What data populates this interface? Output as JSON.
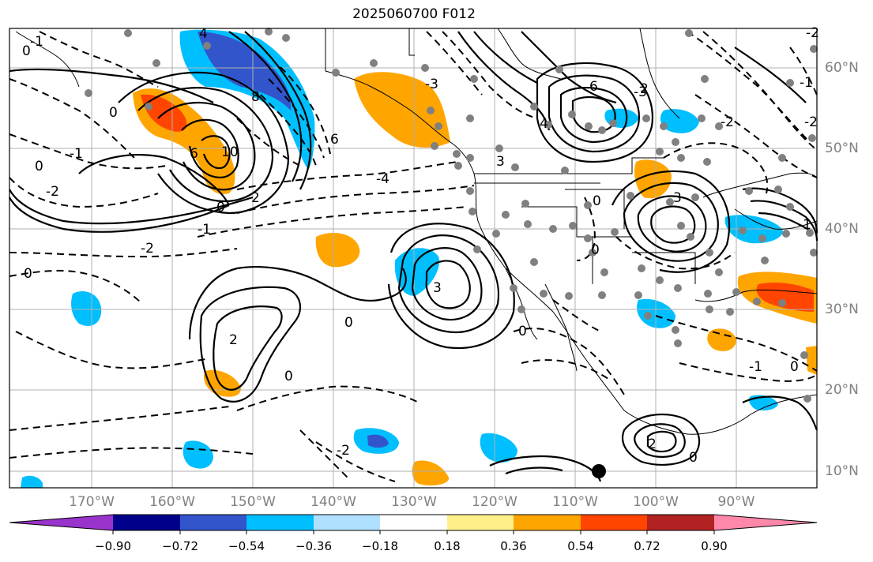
{
  "title": "2025060700 F012",
  "lat_labels": [
    "60°N",
    "50°N",
    "40°N",
    "30°N",
    "20°N",
    "10°N"
  ],
  "lon_labels": [
    "170°W",
    "160°W",
    "150°W",
    "140°W",
    "130°W",
    "120°W",
    "110°W",
    "100°W",
    "90°W"
  ],
  "colorbar": {
    "ticks": [
      "−0.90",
      "−0.72",
      "−0.54",
      "−0.36",
      "−0.18",
      "0.18",
      "0.36",
      "0.54",
      "0.72",
      "0.90"
    ],
    "colors": [
      "#9933cc",
      "#00008b",
      "#3355cc",
      "#00bfff",
      "#b0e0ff",
      "#ffffff",
      "#fff08a",
      "#ffa500",
      "#ff4500",
      "#b22222",
      "#ff88aa"
    ]
  },
  "contour_labels": [
    "-1",
    "0",
    "4",
    "0",
    "-1",
    "-2",
    "6",
    "10",
    "8",
    "6",
    "2",
    "0",
    "-1",
    "-2",
    "0",
    "-4",
    "-3",
    "3",
    "6",
    "4",
    "-3",
    "3",
    "2",
    "0",
    "0",
    "-2",
    "-1",
    "-2",
    "3",
    "-2",
    "0",
    "0",
    "0",
    "-1",
    "2",
    "0",
    "-1",
    "0",
    "2",
    "-2",
    "0"
  ]
}
